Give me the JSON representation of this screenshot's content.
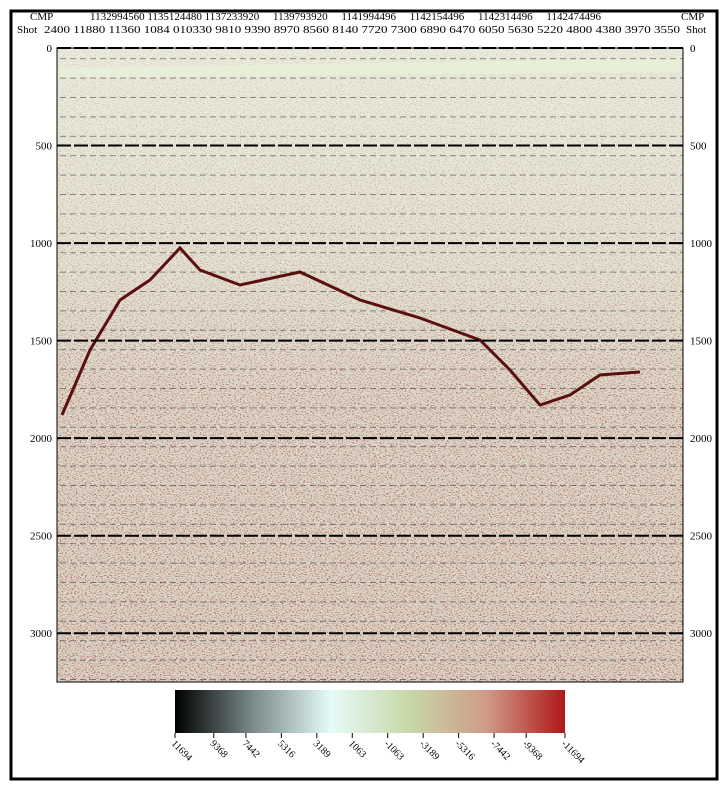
{
  "chart_data": {
    "type": "seismic",
    "header": {
      "cmp_label": "CMP",
      "cmp_values": "1132994560 1135124480 1137233920     1139793920     1141994496     1142154496     1142314496     1142474496",
      "shot_label": "Shot",
      "shot_values": "2400 11880 11360 1084 010330 9810 9390 8970 8560 8140 7720 7300 6890 6470 6050 5630 5220 4800 4380 3970 3550"
    },
    "ylim": [
      0,
      3250
    ],
    "yticks": [
      0,
      500,
      1000,
      1500,
      2000,
      2500,
      3000
    ],
    "colorbar": {
      "lim": [
        11694,
        -11694
      ],
      "ticks": [
        11694,
        9368,
        7442,
        5316,
        3189,
        1063,
        -1063,
        -3189,
        -5316,
        -7442,
        -9368,
        -11694
      ],
      "colors": [
        "#000000",
        "#7a8a8a",
        "#e6fbf8",
        "#c8d8a8",
        "#cf9a88",
        "#b01818"
      ]
    }
  }
}
